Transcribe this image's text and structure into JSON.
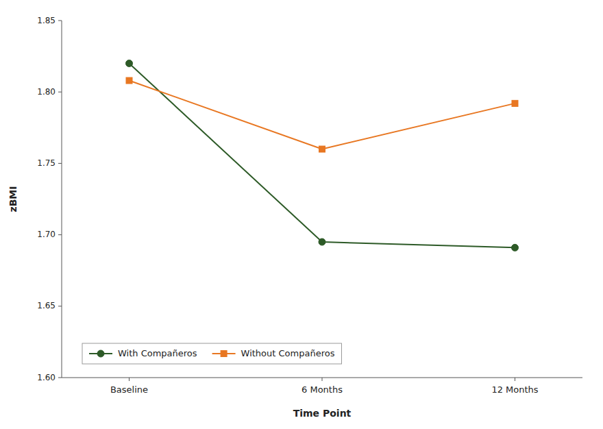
{
  "chart_data": {
    "type": "line",
    "categories": [
      "Baseline",
      "6 Months",
      "12 Months"
    ],
    "series": [
      {
        "name": "With Compañeros",
        "color": "#2d5a27",
        "marker": "circle",
        "values": [
          1.82,
          1.695,
          1.691
        ]
      },
      {
        "name": "Without Compañeros",
        "color": "#e87722",
        "marker": "square",
        "values": [
          1.808,
          1.76,
          1.792
        ]
      }
    ],
    "xlabel": "Time Point",
    "ylabel": "zBMI",
    "ylim": [
      1.6,
      1.85
    ],
    "yticks": [
      {
        "value": 1.6,
        "label": "1.60"
      },
      1.65,
      {
        "value": 1.7,
        "label": "1.70"
      },
      1.75,
      {
        "value": 1.8,
        "label": "1.80"
      },
      1.85
    ],
    "legend": "lower left",
    "grid": false
  }
}
